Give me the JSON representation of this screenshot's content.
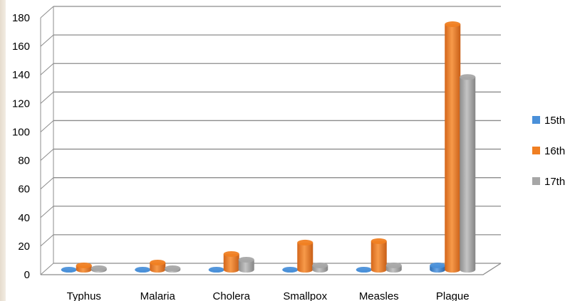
{
  "chart_data": {
    "type": "bar",
    "style": "3d-cylinder",
    "categories": [
      "Typhus",
      "Malaria",
      "Cholera",
      "Smallpox",
      "Measles",
      "Plague"
    ],
    "series": [
      {
        "name": "15th",
        "color": "#4a90d9",
        "values": [
          0,
          0,
          0,
          0,
          0,
          3
        ]
      },
      {
        "name": "16th",
        "color": "#f07f22",
        "values": [
          3,
          5,
          11,
          19,
          20,
          172
        ]
      },
      {
        "name": "17th",
        "color": "#a6a6a6",
        "values": [
          1,
          1,
          7,
          3,
          3,
          135
        ]
      }
    ],
    "y_ticks": [
      "0",
      "20",
      "40",
      "60",
      "80",
      "100",
      "120",
      "140",
      "160",
      "180"
    ],
    "ylim": [
      0,
      180
    ],
    "grid": true,
    "legend_position": "right"
  }
}
